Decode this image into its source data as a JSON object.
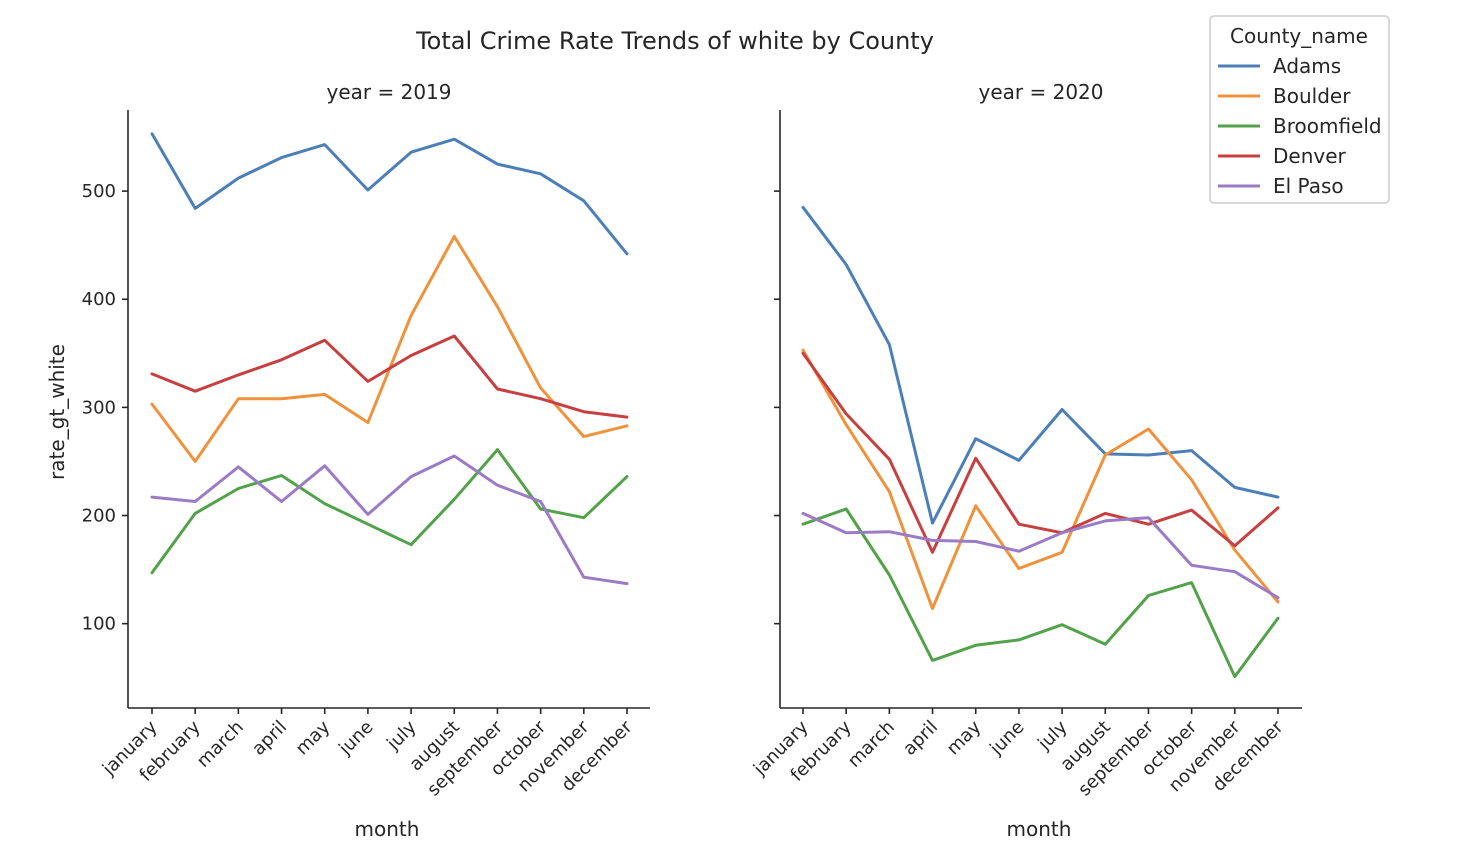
{
  "chart_data": {
    "type": "line",
    "title": "Total Crime Rate Trends of white by County",
    "ylabel": "rate_gt_white",
    "xlabel": "month",
    "ylim": [
      22,
      575
    ],
    "yticks": [
      100,
      200,
      300,
      400,
      500
    ],
    "categories": [
      "january",
      "february",
      "march",
      "april",
      "may",
      "june",
      "july",
      "august",
      "september",
      "october",
      "november",
      "december"
    ],
    "legend": {
      "title": "County_name",
      "placement": "top-right"
    },
    "colors": {
      "Adams": "#4c7fb8",
      "Boulder": "#f0913c",
      "Broomfield": "#52a24a",
      "Denver": "#c7403f",
      "El Paso": "#9b7bc6"
    },
    "panels": [
      {
        "title": "year = 2019",
        "series": [
          {
            "name": "Adams",
            "values": [
              553,
              484,
              512,
              531,
              543,
              501,
              536,
              548,
              525,
              516,
              491,
              442
            ]
          },
          {
            "name": "Boulder",
            "values": [
              303,
              250,
              308,
              308,
              312,
              286,
              385,
              458,
              393,
              318,
              273,
              283
            ]
          },
          {
            "name": "Broomfield",
            "values": [
              147,
              202,
              225,
              237,
              211,
              192,
              173,
              215,
              261,
              206,
              198,
              236
            ]
          },
          {
            "name": "Denver",
            "values": [
              331,
              315,
              330,
              344,
              362,
              324,
              348,
              366,
              317,
              308,
              296,
              291
            ]
          },
          {
            "name": "El Paso",
            "values": [
              217,
              213,
              245,
              213,
              246,
              201,
              236,
              255,
              228,
              213,
              143,
              137
            ]
          }
        ]
      },
      {
        "title": "year = 2020",
        "series": [
          {
            "name": "Adams",
            "values": [
              485,
              432,
              358,
              193,
              271,
              251,
              298,
              257,
              256,
              260,
              226,
              217
            ]
          },
          {
            "name": "Boulder",
            "values": [
              353,
              284,
              222,
              114,
              209,
              151,
              166,
              256,
              280,
              233,
              168,
              120
            ]
          },
          {
            "name": "Broomfield",
            "values": [
              192,
              206,
              145,
              66,
              80,
              85,
              99,
              81,
              126,
              138,
              51,
              105
            ]
          },
          {
            "name": "Denver",
            "values": [
              350,
              294,
              252,
              166,
              253,
              192,
              184,
              202,
              192,
              205,
              172,
              207
            ]
          },
          {
            "name": "El Paso",
            "values": [
              202,
              184,
              185,
              177,
              176,
              167,
              184,
              195,
              198,
              154,
              148,
              124
            ]
          }
        ]
      }
    ]
  }
}
